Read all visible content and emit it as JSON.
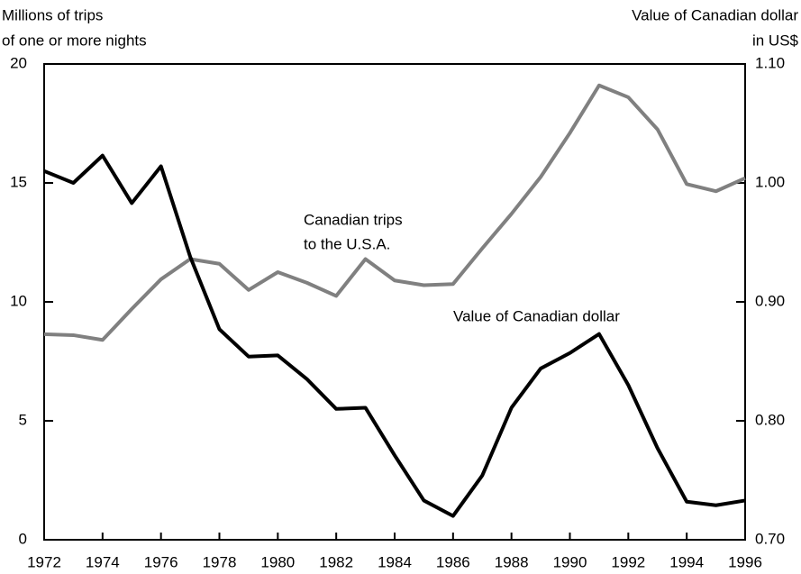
{
  "chart_data": {
    "type": "line",
    "y_label": [
      "Millions of trips",
      "of one or more nights"
    ],
    "y2_label": [
      "Value of Canadian dollar",
      "in US$"
    ],
    "annotations": [
      [
        "Canadian trips",
        "to the U.S.A."
      ],
      [
        "Value of Canadian dollar"
      ]
    ],
    "x": [
      1972,
      1973,
      1974,
      1975,
      1976,
      1977,
      1978,
      1979,
      1980,
      1981,
      1982,
      1983,
      1984,
      1985,
      1986,
      1987,
      1988,
      1989,
      1990,
      1991,
      1992,
      1993,
      1994,
      1995,
      1996
    ],
    "xlim": [
      1972,
      1996
    ],
    "xticks": [
      1972,
      1974,
      1976,
      1978,
      1980,
      1982,
      1984,
      1986,
      1988,
      1990,
      1992,
      1994,
      1996
    ],
    "ylim": [
      0,
      20
    ],
    "yticks": [
      0,
      5,
      10,
      15,
      20
    ],
    "y2lim": [
      0.7,
      1.1
    ],
    "y2ticks": [
      {
        "value": 0.7,
        "label": "0.70"
      },
      {
        "value": 0.8,
        "label": "0.80"
      },
      {
        "value": 0.9,
        "label": "0.90"
      },
      {
        "value": 1.0,
        "label": "1.00"
      },
      {
        "value": 1.1,
        "label": "1.10"
      }
    ],
    "series": [
      {
        "name": "Canadian trips to the U.S.A.",
        "color": "#808080",
        "values": [
          8.64,
          8.6,
          8.4,
          9.7,
          10.95,
          11.8,
          11.6,
          10.5,
          11.25,
          10.8,
          10.25,
          11.8,
          10.9,
          10.7,
          10.75,
          12.25,
          13.7,
          15.25,
          17.1,
          19.1,
          18.6,
          17.25,
          14.95,
          14.65,
          15.2
        ]
      },
      {
        "name": "Value of Canadian dollar",
        "color": "#000000",
        "axis": "y2",
        "values": [
          1.01,
          1.0,
          1.023,
          0.983,
          1.014,
          0.938,
          0.877,
          0.854,
          0.855,
          0.835,
          0.81,
          0.811,
          0.771,
          0.733,
          0.72,
          0.754,
          0.811,
          0.844,
          0.857,
          0.873,
          0.83,
          0.777,
          0.732,
          0.729,
          0.733
        ]
      }
    ]
  }
}
